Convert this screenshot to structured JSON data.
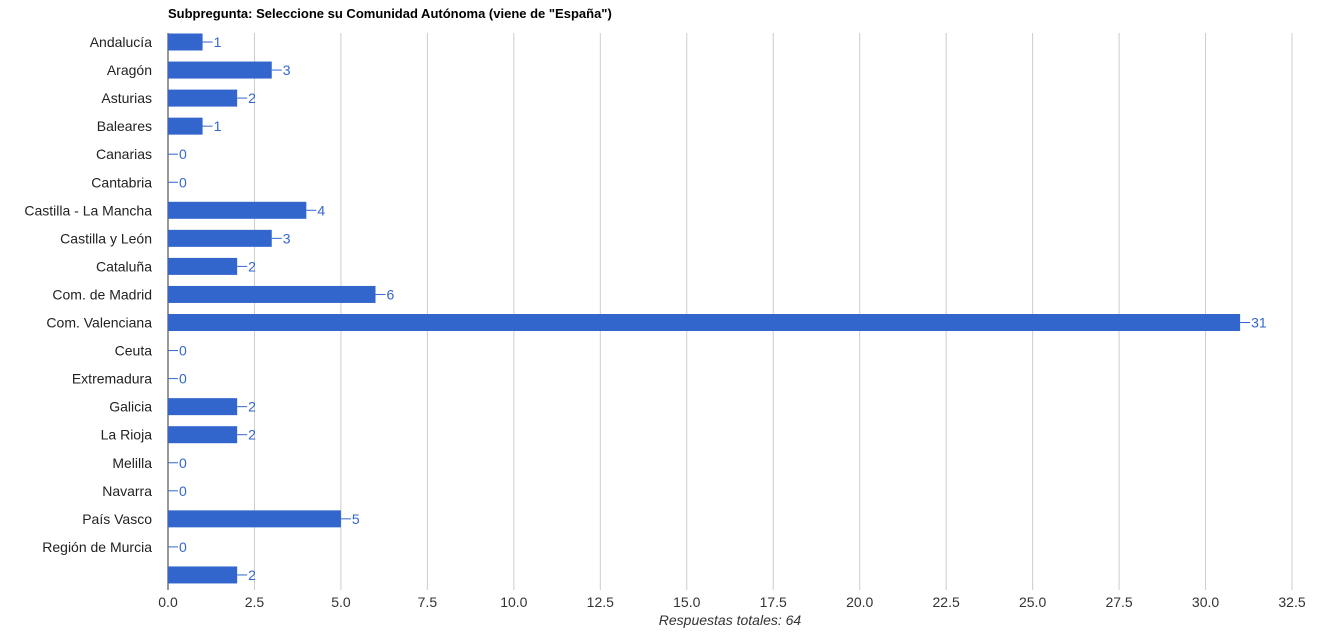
{
  "chart_data": {
    "type": "bar",
    "orientation": "horizontal",
    "title": "Subpregunta: Seleccione su Comunidad Autónoma (viene de \"España\")",
    "xlabel": "Respuestas totales: 64",
    "ylabel": "",
    "xlim": [
      0,
      32.5
    ],
    "xticks": [
      "0.0",
      "2.5",
      "5.0",
      "7.5",
      "10.0",
      "12.5",
      "15.0",
      "17.5",
      "20.0",
      "22.5",
      "25.0",
      "27.5",
      "30.0",
      "32.5"
    ],
    "grid": true,
    "categories": [
      "Andalucía",
      "Aragón",
      "Asturias",
      "Baleares",
      "Canarias",
      "Cantabria",
      "Castilla - La Mancha",
      "Castilla y León",
      "Cataluña",
      "Com. de Madrid",
      "Com. Valenciana",
      "Ceuta",
      "Extremadura",
      "Galicia",
      "La Rioja",
      "Melilla",
      "Navarra",
      "País Vasco",
      "Región de Murcia",
      ""
    ],
    "values": [
      1,
      3,
      2,
      1,
      0,
      0,
      4,
      3,
      2,
      6,
      31,
      0,
      0,
      2,
      2,
      0,
      0,
      5,
      0,
      2
    ],
    "colors": {
      "bar": "#3366cc",
      "label": "#3366cc",
      "grid": "#cccccc",
      "axis": "#333333",
      "text": "#222222"
    }
  }
}
